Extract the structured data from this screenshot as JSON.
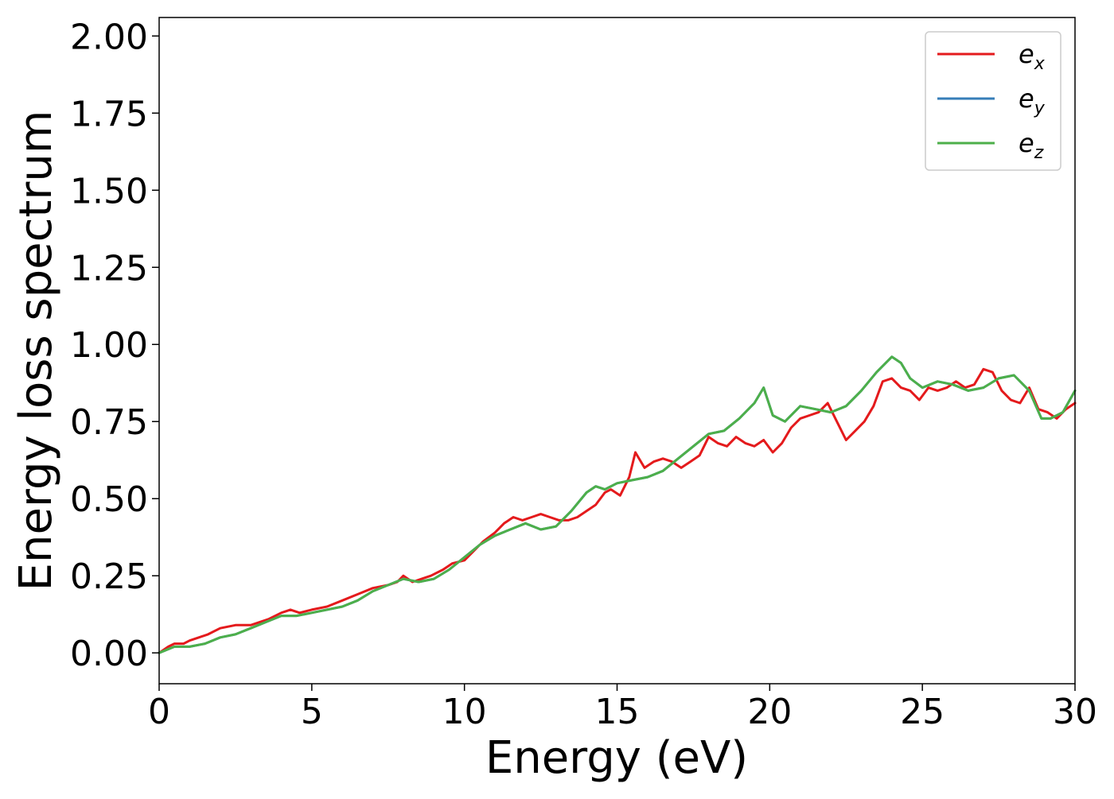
{
  "chart_data": {
    "type": "line",
    "title": "",
    "xlabel": "Energy (eV)",
    "ylabel": "Energy loss spectrum",
    "xlim": [
      0,
      30
    ],
    "ylim": [
      -0.1,
      2.06
    ],
    "xticks": [
      0,
      5,
      10,
      15,
      20,
      25,
      30
    ],
    "xtick_labels": [
      "0",
      "5",
      "10",
      "15",
      "20",
      "25",
      "30"
    ],
    "yticks": [
      0.0,
      0.25,
      0.5,
      0.75,
      1.0,
      1.25,
      1.5,
      1.75,
      2.0
    ],
    "ytick_labels": [
      "0.00",
      "0.25",
      "0.50",
      "0.75",
      "1.00",
      "1.25",
      "1.50",
      "1.75",
      "2.00"
    ],
    "grid": false,
    "legend_position": "top-right",
    "series": [
      {
        "name": "e_x",
        "legend_base": "e",
        "legend_sub": "x",
        "color": "#e41a1c",
        "x": [
          0,
          0.3,
          0.5,
          0.8,
          1.0,
          1.3,
          1.6,
          2.0,
          2.5,
          3.0,
          3.3,
          3.6,
          4.0,
          4.3,
          4.6,
          5.0,
          5.5,
          6.0,
          6.5,
          7.0,
          7.5,
          7.8,
          8.0,
          8.3,
          8.6,
          8.9,
          9.3,
          9.6,
          10.0,
          10.3,
          10.6,
          11.0,
          11.3,
          11.6,
          11.9,
          12.2,
          12.5,
          12.8,
          13.1,
          13.4,
          13.7,
          14.0,
          14.3,
          14.6,
          14.8,
          15.1,
          15.4,
          15.6,
          15.9,
          16.2,
          16.5,
          16.8,
          17.1,
          17.4,
          17.7,
          18.0,
          18.3,
          18.6,
          18.9,
          19.2,
          19.5,
          19.8,
          20.1,
          20.4,
          20.7,
          21.0,
          21.3,
          21.6,
          21.9,
          22.2,
          22.5,
          22.8,
          23.1,
          23.4,
          23.7,
          24.0,
          24.3,
          24.6,
          24.9,
          25.2,
          25.5,
          25.8,
          26.1,
          26.4,
          26.7,
          27.0,
          27.3,
          27.6,
          27.9,
          28.2,
          28.5,
          28.8,
          29.1,
          29.4,
          29.7,
          30.0
        ],
        "y": [
          0.0,
          0.02,
          0.03,
          0.03,
          0.04,
          0.05,
          0.06,
          0.08,
          0.09,
          0.09,
          0.1,
          0.11,
          0.13,
          0.14,
          0.13,
          0.14,
          0.15,
          0.17,
          0.19,
          0.21,
          0.22,
          0.23,
          0.25,
          0.23,
          0.24,
          0.25,
          0.27,
          0.29,
          0.3,
          0.33,
          0.36,
          0.39,
          0.42,
          0.44,
          0.43,
          0.44,
          0.45,
          0.44,
          0.43,
          0.43,
          0.44,
          0.46,
          0.48,
          0.52,
          0.53,
          0.51,
          0.57,
          0.65,
          0.6,
          0.62,
          0.63,
          0.62,
          0.6,
          0.62,
          0.64,
          0.7,
          0.68,
          0.67,
          0.7,
          0.68,
          0.67,
          0.69,
          0.65,
          0.68,
          0.73,
          0.76,
          0.77,
          0.78,
          0.81,
          0.75,
          0.69,
          0.72,
          0.75,
          0.8,
          0.88,
          0.89,
          0.86,
          0.85,
          0.82,
          0.86,
          0.85,
          0.86,
          0.88,
          0.86,
          0.87,
          0.92,
          0.91,
          0.85,
          0.82,
          0.81,
          0.86,
          0.79,
          0.78,
          0.76,
          0.79,
          0.81
        ]
      },
      {
        "name": "e_y",
        "legend_base": "e",
        "legend_sub": "y",
        "color": "#377eb8",
        "x": [
          0,
          0.5,
          1.0,
          1.5,
          2.0,
          2.5,
          3.0,
          3.5,
          4.0,
          4.5,
          5.0,
          5.5,
          6.0,
          6.5,
          7.0,
          7.5,
          8.0,
          8.5,
          9.0,
          9.5,
          10.0,
          10.5,
          11.0,
          11.5,
          12.0,
          12.5,
          13.0,
          13.5,
          14.0,
          14.3,
          14.6,
          15.0,
          15.5,
          16.0,
          16.5,
          17.0,
          17.5,
          18.0,
          18.5,
          19.0,
          19.5,
          19.8,
          20.1,
          20.5,
          21.0,
          21.5,
          22.0,
          22.5,
          23.0,
          23.5,
          24.0,
          24.3,
          24.6,
          25.0,
          25.5,
          26.0,
          26.5,
          27.0,
          27.5,
          28.0,
          28.5,
          28.9,
          29.2,
          29.6,
          30.0
        ],
        "y": [
          0.0,
          0.02,
          0.02,
          0.03,
          0.05,
          0.06,
          0.08,
          0.1,
          0.12,
          0.12,
          0.13,
          0.14,
          0.15,
          0.17,
          0.2,
          0.22,
          0.24,
          0.23,
          0.24,
          0.27,
          0.31,
          0.35,
          0.38,
          0.4,
          0.42,
          0.4,
          0.41,
          0.46,
          0.52,
          0.54,
          0.53,
          0.55,
          0.56,
          0.57,
          0.59,
          0.63,
          0.67,
          0.71,
          0.72,
          0.76,
          0.81,
          0.86,
          0.77,
          0.75,
          0.8,
          0.79,
          0.78,
          0.8,
          0.85,
          0.91,
          0.96,
          0.94,
          0.89,
          0.86,
          0.88,
          0.87,
          0.85,
          0.86,
          0.89,
          0.9,
          0.85,
          0.76,
          0.76,
          0.78,
          0.85
        ]
      },
      {
        "name": "e_z",
        "legend_base": "e",
        "legend_sub": "z",
        "color": "#4daf4a",
        "x": [
          0,
          0.5,
          1.0,
          1.5,
          2.0,
          2.5,
          3.0,
          3.5,
          4.0,
          4.5,
          5.0,
          5.5,
          6.0,
          6.5,
          7.0,
          7.5,
          8.0,
          8.5,
          9.0,
          9.5,
          10.0,
          10.5,
          11.0,
          11.5,
          12.0,
          12.5,
          13.0,
          13.5,
          14.0,
          14.3,
          14.6,
          15.0,
          15.5,
          16.0,
          16.5,
          17.0,
          17.5,
          18.0,
          18.5,
          19.0,
          19.5,
          19.8,
          20.1,
          20.5,
          21.0,
          21.5,
          22.0,
          22.5,
          23.0,
          23.5,
          24.0,
          24.3,
          24.6,
          25.0,
          25.5,
          26.0,
          26.5,
          27.0,
          27.5,
          28.0,
          28.5,
          28.9,
          29.2,
          29.6,
          30.0
        ],
        "y": [
          0.0,
          0.02,
          0.02,
          0.03,
          0.05,
          0.06,
          0.08,
          0.1,
          0.12,
          0.12,
          0.13,
          0.14,
          0.15,
          0.17,
          0.2,
          0.22,
          0.24,
          0.23,
          0.24,
          0.27,
          0.31,
          0.35,
          0.38,
          0.4,
          0.42,
          0.4,
          0.41,
          0.46,
          0.52,
          0.54,
          0.53,
          0.55,
          0.56,
          0.57,
          0.59,
          0.63,
          0.67,
          0.71,
          0.72,
          0.76,
          0.81,
          0.86,
          0.77,
          0.75,
          0.8,
          0.79,
          0.78,
          0.8,
          0.85,
          0.91,
          0.96,
          0.94,
          0.89,
          0.86,
          0.88,
          0.87,
          0.85,
          0.86,
          0.89,
          0.9,
          0.85,
          0.76,
          0.76,
          0.78,
          0.85
        ]
      }
    ]
  }
}
